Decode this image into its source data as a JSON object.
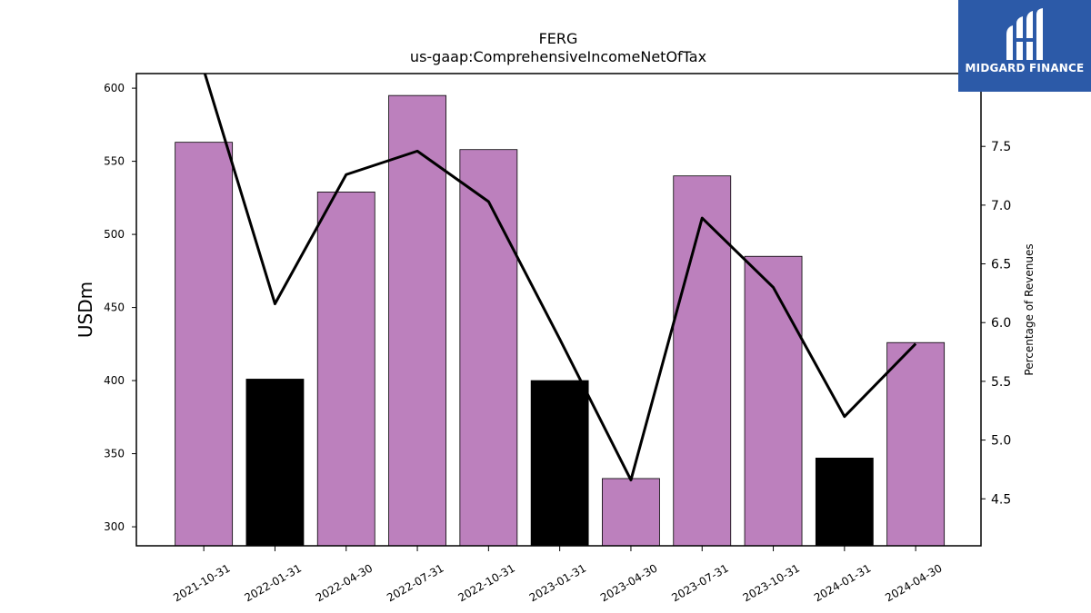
{
  "chart_data": {
    "type": "bar",
    "title": "FERG",
    "subtitle": "us-gaap:ComprehensiveIncomeNetOfTax",
    "ylabel": "USDm",
    "y2label": "Percentage of Revenues",
    "ylim": [
      287,
      610
    ],
    "y2lim": [
      4.1,
      8.12
    ],
    "yticks": [
      300,
      350,
      400,
      450,
      500,
      550,
      600
    ],
    "y2ticks": [
      4.5,
      5.0,
      5.5,
      6.0,
      6.5,
      7.0,
      7.5
    ],
    "categories": [
      "2021-10-31",
      "2022-01-31",
      "2022-04-30",
      "2022-07-31",
      "2022-10-31",
      "2023-01-31",
      "2023-04-30",
      "2023-07-31",
      "2023-10-31",
      "2024-01-31",
      "2024-04-30"
    ],
    "series": [
      {
        "type": "bar",
        "values": [
          563,
          401,
          529,
          595,
          558,
          400,
          333,
          540,
          485,
          347,
          426
        ],
        "colors": [
          "#bc80bd",
          "#000000",
          "#bc80bd",
          "#bc80bd",
          "#bc80bd",
          "#000000",
          "#bc80bd",
          "#bc80bd",
          "#bc80bd",
          "#000000",
          "#bc80bd"
        ]
      },
      {
        "type": "line",
        "axis": "right",
        "color": "#000000",
        "values": [
          8.15,
          6.16,
          7.26,
          7.46,
          7.03,
          5.86,
          4.66,
          6.89,
          6.3,
          5.2,
          5.82
        ]
      }
    ],
    "grid": false
  },
  "logo": {
    "text": "MIDGARD FINANCE",
    "background": "#2c5aa8"
  }
}
